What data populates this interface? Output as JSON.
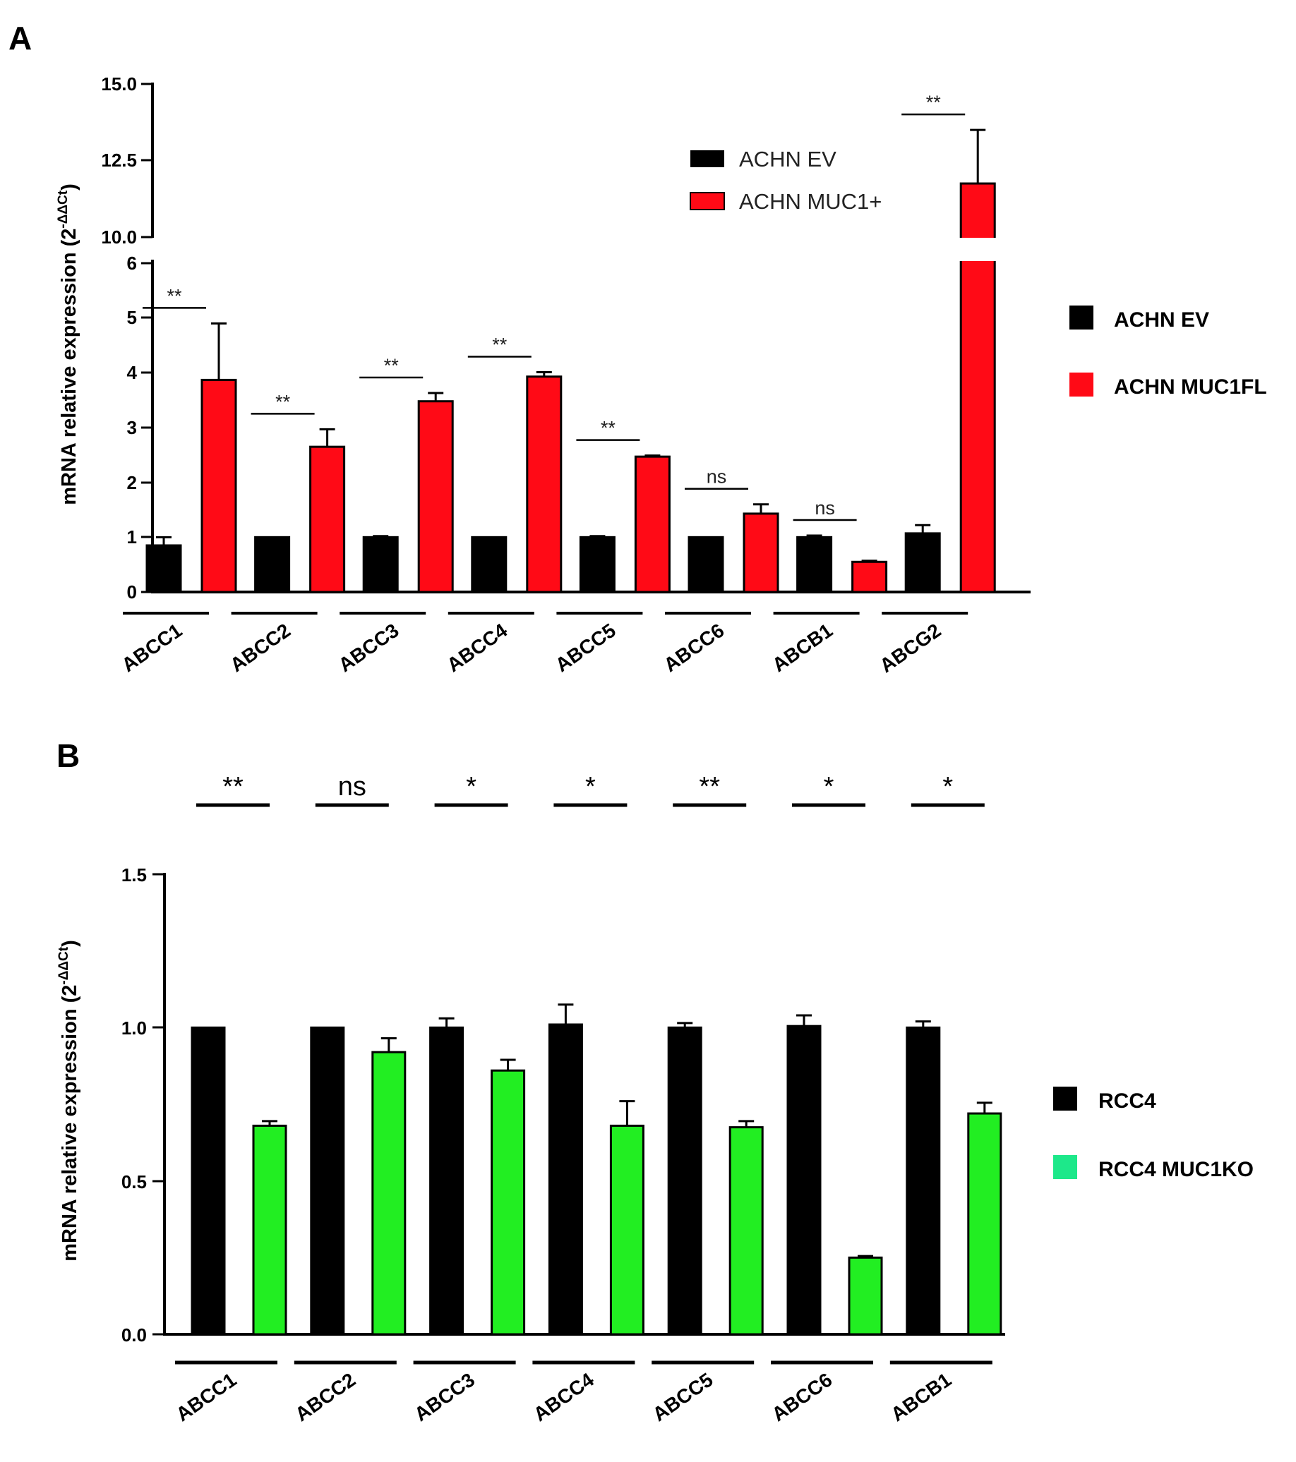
{
  "panels": [
    {
      "letter": "A"
    },
    {
      "letter": "B"
    }
  ],
  "chart_data": [
    {
      "type": "bar",
      "panel": "A",
      "ylabel": "mRNA relative expression (2",
      "ylabel_sup": "-ΔΔCt",
      "ylabel_close": ")",
      "axis_break": true,
      "ylim_lower": [
        0,
        6
      ],
      "ylim_upper": [
        10,
        15
      ],
      "yticks_lower": [
        "0",
        "1",
        "2",
        "3",
        "4",
        "5",
        "6"
      ],
      "yticks_upper": [
        "10.0",
        "12.5",
        "15.0"
      ],
      "categories": [
        "ABCC1",
        "ABCC2",
        "ABCC3",
        "ABCC4",
        "ABCC5",
        "ABCC6",
        "ABCB1",
        "ABCG2"
      ],
      "series": [
        {
          "name": "ACHN EV",
          "color": "#000000",
          "values": [
            0.85,
            1.0,
            1.0,
            1.0,
            1.0,
            1.0,
            1.0,
            1.07
          ],
          "errors": [
            0.15,
            0.0,
            0.02,
            0.0,
            0.02,
            0.0,
            0.03,
            0.15
          ]
        },
        {
          "name": "ACHN MUC1FL",
          "color": "#ff0a16",
          "values": [
            3.87,
            2.65,
            3.48,
            3.93,
            2.47,
            1.43,
            0.55,
            11.75
          ],
          "errors": [
            1.03,
            0.32,
            0.15,
            0.08,
            0.02,
            0.17,
            0.02,
            1.75
          ]
        }
      ],
      "significance": [
        "**",
        "**",
        "**",
        "**",
        "**",
        "ns",
        "ns",
        "**"
      ],
      "inner_legend": [
        "ACHN EV",
        "ACHN MUC1+"
      ],
      "legend": [
        "ACHN EV",
        "ACHN MUC1FL"
      ]
    },
    {
      "type": "bar",
      "panel": "B",
      "ylabel": "mRNA relative expression (2",
      "ylabel_sup": "-ΔΔCt",
      "ylabel_close": ")",
      "ylim": [
        0,
        1.5
      ],
      "yticks": [
        "0.0",
        "0.5",
        "1.0",
        "1.5"
      ],
      "categories": [
        "ABCC1",
        "ABCC2",
        "ABCC3",
        "ABCC4",
        "ABCC5",
        "ABCC6",
        "ABCB1"
      ],
      "series": [
        {
          "name": "RCC4",
          "color": "#000000",
          "values": [
            1.0,
            1.0,
            1.0,
            1.01,
            1.0,
            1.005,
            1.0
          ],
          "errors": [
            0.0,
            0.0,
            0.03,
            0.065,
            0.015,
            0.035,
            0.02
          ]
        },
        {
          "name": "RCC4 MUC1KO",
          "color": "#22ee22",
          "values": [
            0.68,
            0.92,
            0.86,
            0.68,
            0.675,
            0.25,
            0.72
          ],
          "errors": [
            0.015,
            0.045,
            0.035,
            0.08,
            0.02,
            0.005,
            0.035
          ]
        }
      ],
      "significance": [
        "**",
        "ns",
        "*",
        "*",
        "**",
        "*",
        "*"
      ],
      "legend": [
        "RCC4",
        "RCC4 MUC1KO"
      ],
      "legend_colors": [
        "#000000",
        "#1de88a"
      ]
    }
  ]
}
